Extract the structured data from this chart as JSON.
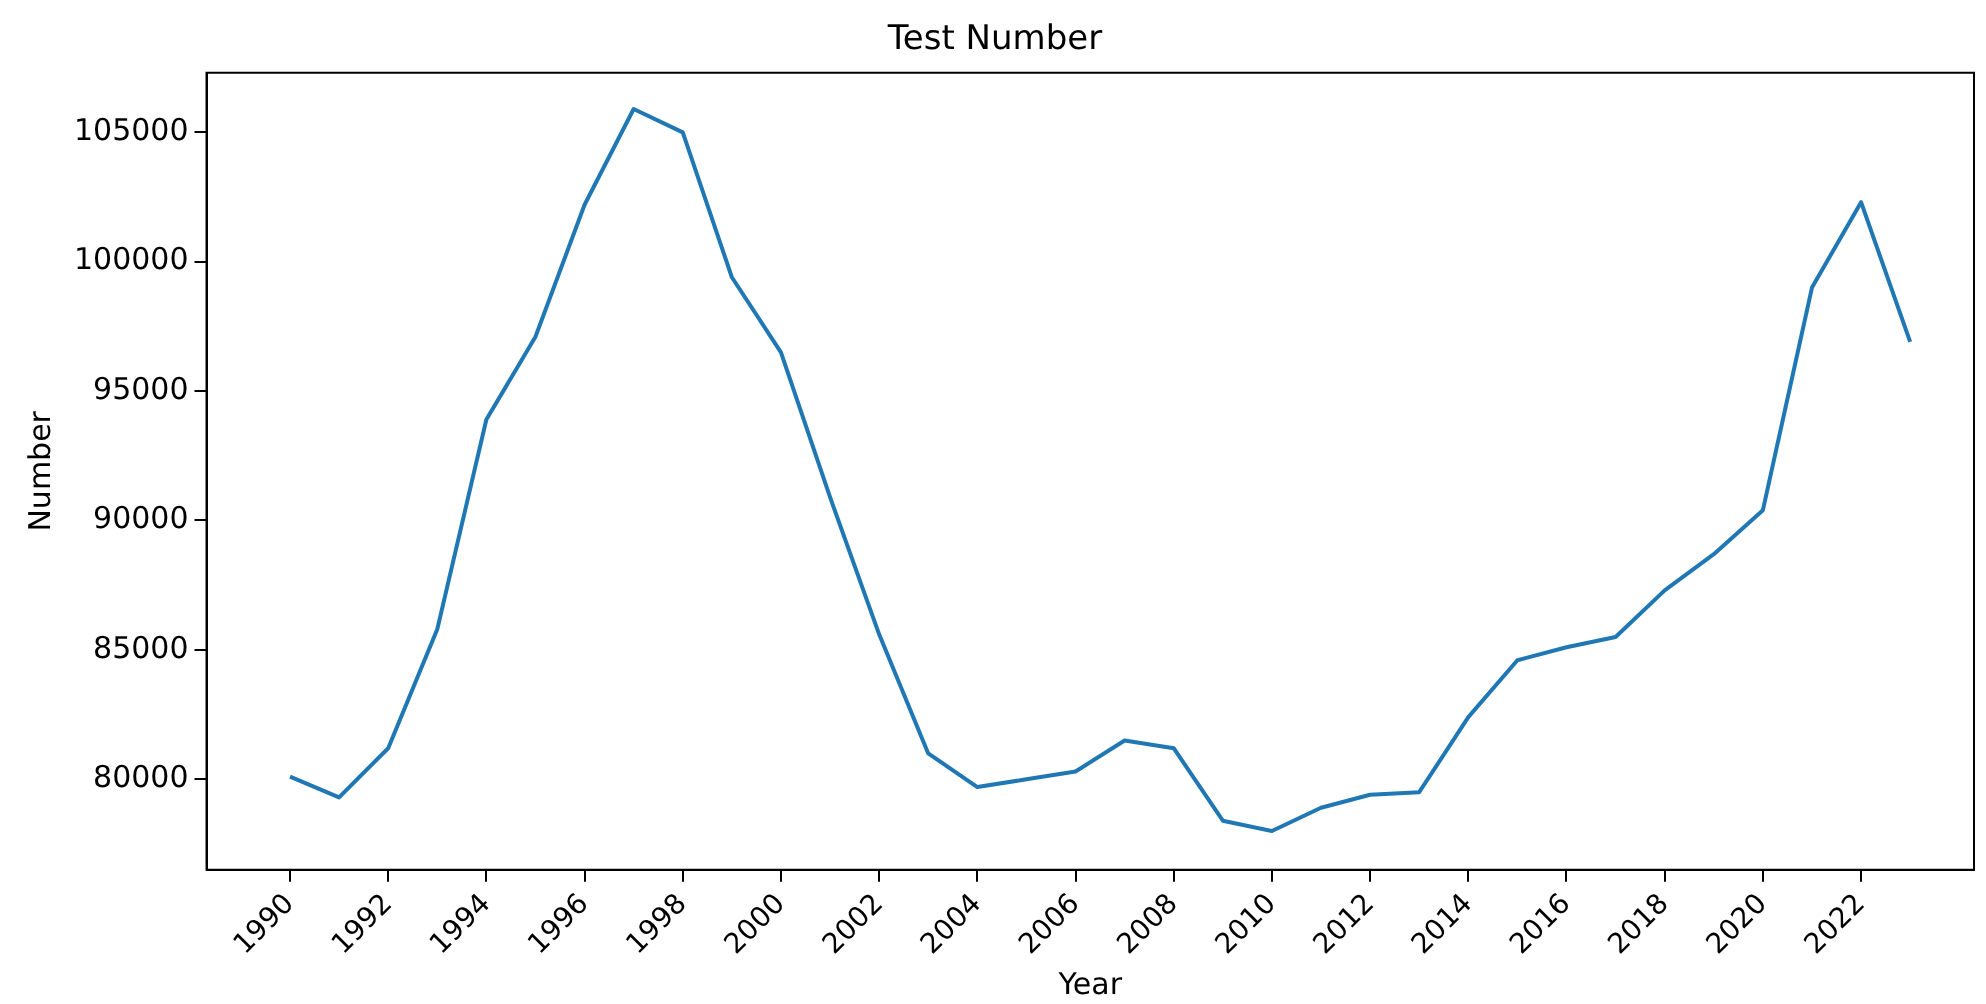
{
  "chart_data": {
    "type": "line",
    "title": "Test Number",
    "xlabel": "Year",
    "ylabel": "Number",
    "x": [
      1990,
      1991,
      1992,
      1993,
      1994,
      1995,
      1996,
      1997,
      1998,
      1999,
      2000,
      2001,
      2002,
      2003,
      2004,
      2005,
      2006,
      2007,
      2008,
      2009,
      2010,
      2011,
      2012,
      2013,
      2014,
      2015,
      2016,
      2017,
      2018,
      2019,
      2020,
      2021,
      2022,
      2023
    ],
    "series": [
      {
        "color": "#1f77b4",
        "values": [
          80100,
          79300,
          81200,
          85800,
          93900,
          97100,
          102200,
          105900,
          105000,
          99400,
          96500,
          90900,
          85600,
          81000,
          79700,
          80000,
          80300,
          81500,
          81200,
          78400,
          78000,
          78900,
          79400,
          79500,
          82400,
          84600,
          85100,
          85500,
          87300,
          88700,
          90400,
          99000,
          102300,
          96900
        ]
      }
    ],
    "xlim": [
      1988.3,
      2024.3
    ],
    "xticks": [
      1990,
      1992,
      1994,
      1996,
      1998,
      2000,
      2002,
      2004,
      2006,
      2008,
      2010,
      2012,
      2014,
      2016,
      2018,
      2020,
      2022
    ],
    "ylim": [
      76500,
      107300
    ],
    "yticks": [
      80000,
      85000,
      90000,
      95000,
      100000,
      105000
    ],
    "grid": false,
    "legend": false,
    "marker": "none",
    "line_style": "solid"
  }
}
